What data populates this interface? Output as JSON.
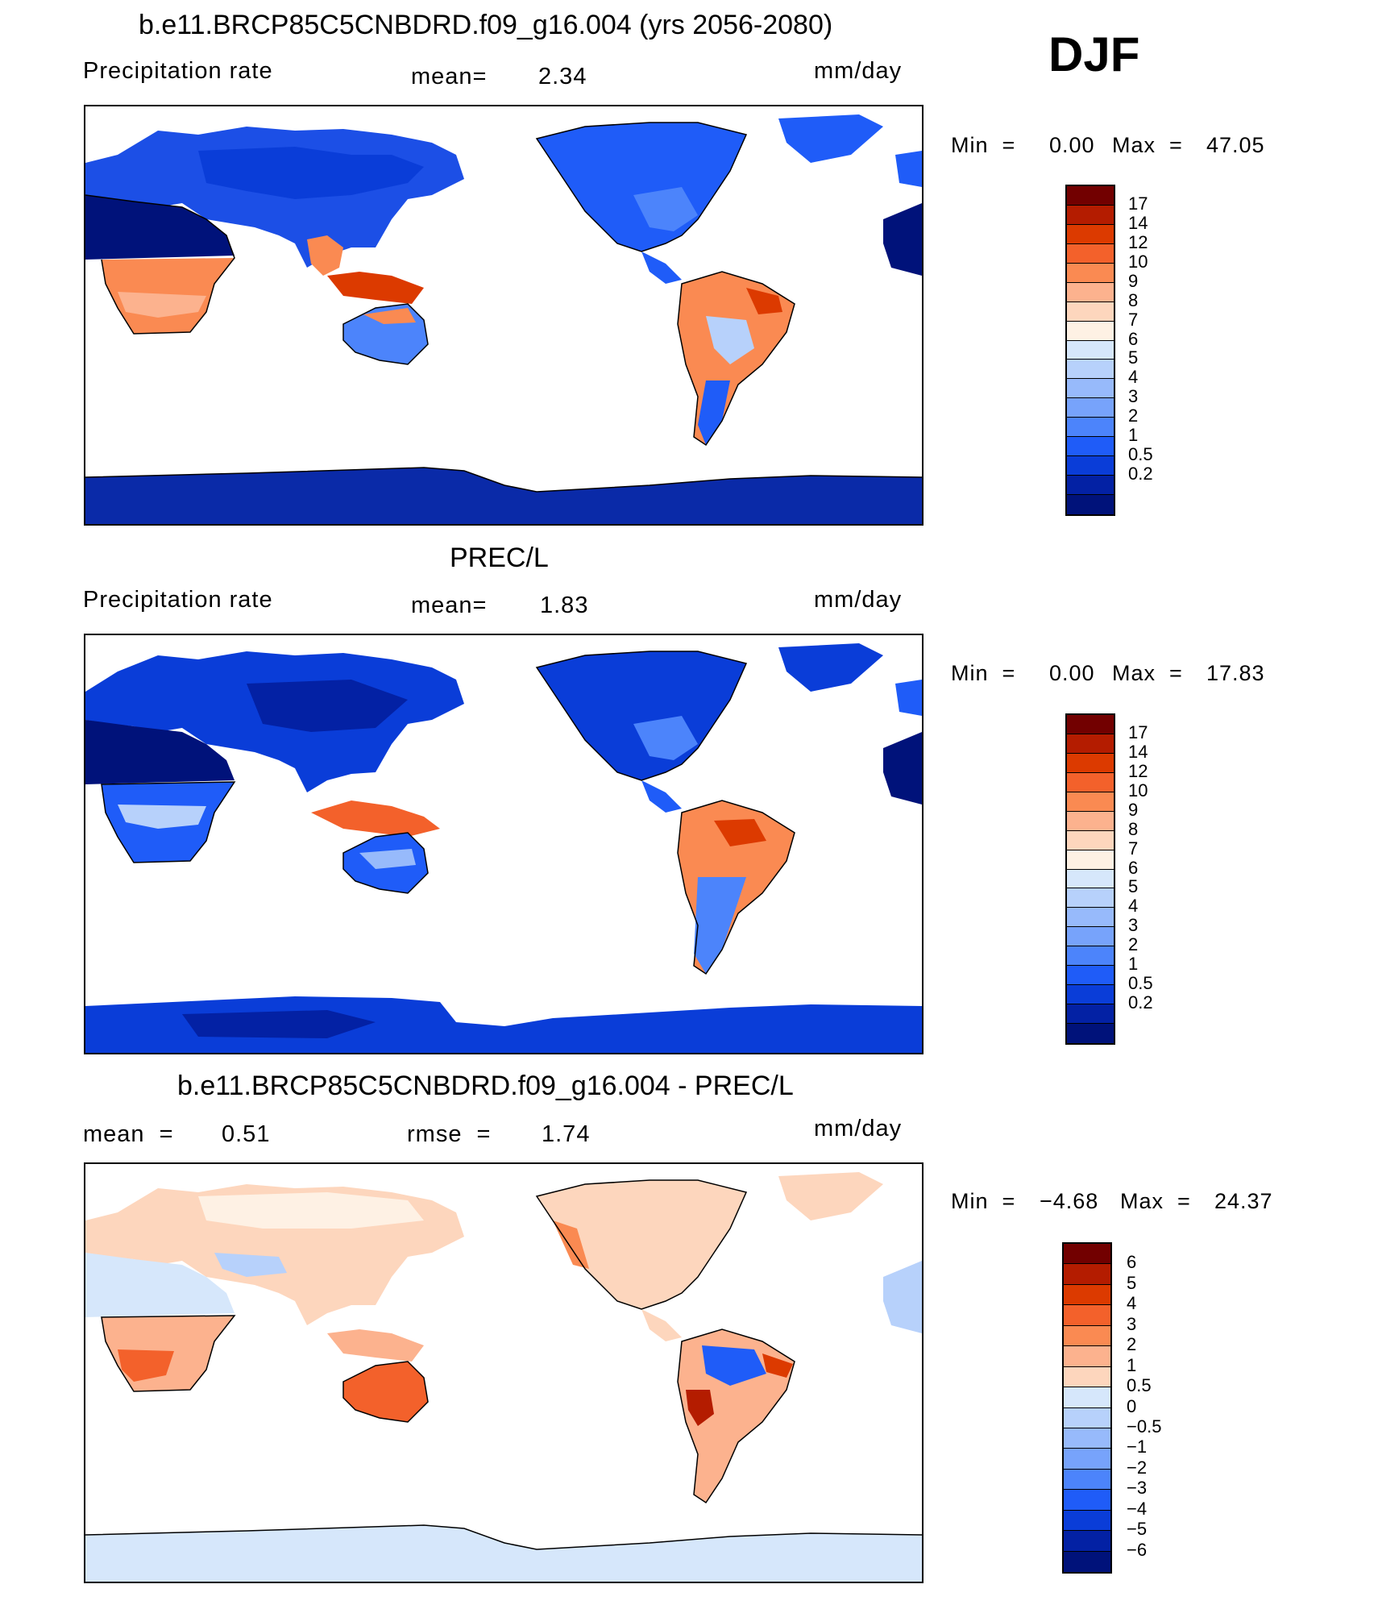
{
  "season": "DJF",
  "units": "mm/day",
  "palette_12": [
    "#720000",
    "#b41c00",
    "#dc3a00",
    "#f3612b",
    "#fa8a52",
    "#fcb28e",
    "#fdd6bd",
    "#fef1e4",
    "#d6e7fb",
    "#b7d1fb",
    "#97bafb",
    "#77a3fb",
    "#4c84fb",
    "#1f5cf8",
    "#0a3dd8",
    "#0321a4",
    "#00127a"
  ],
  "palette_15": [
    "#720000",
    "#b41c00",
    "#dc3a00",
    "#f3612b",
    "#fa8a52",
    "#fcb28e",
    "#fdd6bd",
    "#d6e7fb",
    "#b7d1fb",
    "#97bafb",
    "#77a3fb",
    "#4c84fb",
    "#1f5cf8",
    "#0a3dd8",
    "#0321a4",
    "#00127a"
  ],
  "chart_data": [
    {
      "type": "heatmap",
      "title": "b.e11.BRCP85C5CNBDRD.f09_g16.004 (yrs 2056-2080)",
      "variable": "Precipitation rate",
      "mean_label": "mean=",
      "mean": "2.34",
      "units": "mm/day",
      "min_label": "Min  =",
      "min": "0.00",
      "max_label": "Max  =",
      "max": "47.05",
      "colorbar_levels": [
        "17",
        "14",
        "12",
        "10",
        "9",
        "8",
        "7",
        "6",
        "5",
        "4",
        "3",
        "2",
        "1",
        "0.5",
        "0.2"
      ]
    },
    {
      "type": "heatmap",
      "title": "PREC/L",
      "variable": "Precipitation rate",
      "mean_label": "mean=",
      "mean": "1.83",
      "units": "mm/day",
      "min_label": "Min  =",
      "min": "0.00",
      "max_label": "Max  =",
      "max": "17.83",
      "colorbar_levels": [
        "17",
        "14",
        "12",
        "10",
        "9",
        "8",
        "7",
        "6",
        "5",
        "4",
        "3",
        "2",
        "1",
        "0.5",
        "0.2"
      ]
    },
    {
      "type": "heatmap",
      "title": "b.e11.BRCP85C5CNBDRD.f09_g16.004 - PREC/L",
      "mean_label": "mean  =",
      "mean": "0.51",
      "rmse_label": "rmse  =",
      "rmse": "1.74",
      "units": "mm/day",
      "min_label": "Min  =",
      "min": "−4.68",
      "max_label": "Max  =",
      "max": "24.37",
      "colorbar_levels": [
        "6",
        "5",
        "4",
        "3",
        "2",
        "1",
        "0.5",
        "0",
        "−0.5",
        "−1",
        "−2",
        "−3",
        "−4",
        "−5",
        "−6"
      ]
    }
  ]
}
